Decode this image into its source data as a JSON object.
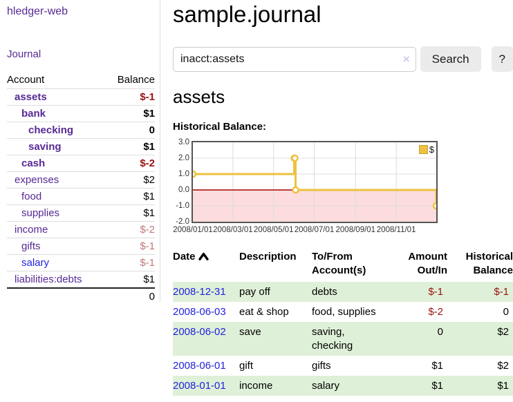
{
  "app_title": "hledger-web",
  "sidebar": {
    "journal_link": "Journal",
    "accounts": {
      "col_account": "Account",
      "col_balance": "Balance",
      "rows": [
        {
          "name": "assets",
          "balance": "$-1",
          "indent": 1,
          "bold": true,
          "bal_class": "neg-strong"
        },
        {
          "name": "bank",
          "balance": "$1",
          "indent": 2,
          "bold": true,
          "bal_class": "plain"
        },
        {
          "name": "checking",
          "balance": "0",
          "indent": 3,
          "bold": true,
          "bal_class": "plain"
        },
        {
          "name": "saving",
          "balance": "$1",
          "indent": 3,
          "bold": true,
          "bal_class": "plain"
        },
        {
          "name": "cash",
          "balance": "$-2",
          "indent": 2,
          "bold": true,
          "bal_class": "neg-strong"
        },
        {
          "name": "expenses",
          "balance": "$2",
          "indent": 1,
          "bold": false,
          "bal_class": "plain"
        },
        {
          "name": "food",
          "balance": "$1",
          "indent": 2,
          "bold": false,
          "bal_class": "plain"
        },
        {
          "name": "supplies",
          "balance": "$1",
          "indent": 2,
          "bold": false,
          "bal_class": "plain"
        },
        {
          "name": "income",
          "balance": "$-2",
          "indent": 1,
          "bold": false,
          "bal_class": "neg-muted"
        },
        {
          "name": "gifts",
          "balance": "$-1",
          "indent": 2,
          "bold": false,
          "bal_class": "neg-muted"
        },
        {
          "name": "salary",
          "balance": "$-1",
          "indent": 2,
          "bold": false,
          "bal_class": "neg-muted",
          "blue": true
        },
        {
          "name": "liabilities:debts",
          "balance": "$1",
          "indent": 1,
          "bold": false,
          "bal_class": "plain"
        }
      ],
      "total": "0"
    }
  },
  "main": {
    "title": "sample.journal",
    "search": {
      "value": "inacct:assets",
      "clear": "×",
      "button": "Search",
      "help": "?"
    },
    "account_title": "assets",
    "chart_label": "Historical Balance:"
  },
  "chart_data": {
    "type": "line",
    "step": true,
    "title": "Historical Balance",
    "series": [
      {
        "name": "$",
        "color": "#edc240",
        "points": [
          {
            "date": "2008-01-01",
            "value": 1
          },
          {
            "date": "2008-06-01",
            "value": 2
          },
          {
            "date": "2008-06-02",
            "value": 2
          },
          {
            "date": "2008-06-03",
            "value": 0
          },
          {
            "date": "2008-12-31",
            "value": -1
          }
        ]
      }
    ],
    "x_min": "2008-01-01",
    "x_max": "2008-12-31",
    "ylim": [
      -2,
      3
    ],
    "yticks": [
      {
        "label": "3.0",
        "value": 3
      },
      {
        "label": "2.0",
        "value": 2
      },
      {
        "label": "1.0",
        "value": 1
      },
      {
        "label": "0.0",
        "value": 0
      },
      {
        "label": "-1.0",
        "value": -1
      },
      {
        "label": "-2.0",
        "value": -2
      }
    ],
    "xticks": [
      {
        "label": "2008/01/01",
        "date": "2008-01-01"
      },
      {
        "label": "2008/03/01",
        "date": "2008-03-01"
      },
      {
        "label": "2008/05/01",
        "date": "2008-05-01"
      },
      {
        "label": "2008/07/01",
        "date": "2008-07-01"
      },
      {
        "label": "2008/09/01",
        "date": "2008-09-01"
      },
      {
        "label": "2008/11/01",
        "date": "2008-11-01"
      }
    ],
    "legend": [
      {
        "label": "$",
        "color": "#edc240"
      }
    ],
    "grid": true,
    "legend_position": "top-right",
    "negative_band": true
  },
  "register": {
    "headers": {
      "date": "Date",
      "description": "Description",
      "accounts": "To/From Account(s)",
      "amount": "Amount Out/In",
      "balance": "Historical Balance"
    },
    "sort": {
      "column": "date",
      "direction": "ascending"
    },
    "rows": [
      {
        "date": "2008-12-31",
        "description": "pay off",
        "accounts": "debts",
        "amount": "$-1",
        "amount_neg": true,
        "balance": "$-1",
        "balance_neg": true
      },
      {
        "date": "2008-06-03",
        "description": "eat & shop",
        "accounts": "food, supplies",
        "amount": "$-2",
        "amount_neg": true,
        "balance": "0",
        "balance_neg": false
      },
      {
        "date": "2008-06-02",
        "description": "save",
        "accounts": "saving, checking",
        "amount": "0",
        "amount_neg": false,
        "balance": "$2",
        "balance_neg": false
      },
      {
        "date": "2008-06-01",
        "description": "gift",
        "accounts": "gifts",
        "amount": "$1",
        "amount_neg": false,
        "balance": "$2",
        "balance_neg": false
      },
      {
        "date": "2008-01-01",
        "description": "income",
        "accounts": "salary",
        "amount": "$1",
        "amount_neg": false,
        "balance": "$1",
        "balance_neg": false
      }
    ]
  },
  "colors": {
    "link_purple": "#572994",
    "link_blue": "#2222dd",
    "negative_strong": "#9a1111",
    "negative_muted": "#c17777",
    "row_green": "#dff0d8",
    "chart_line": "#edc240",
    "chart_negative_fill": "#fcdcdc",
    "chart_zero_line": "#a40000",
    "chart_grid": "#dcdcdc",
    "chart_border": "#545454"
  }
}
